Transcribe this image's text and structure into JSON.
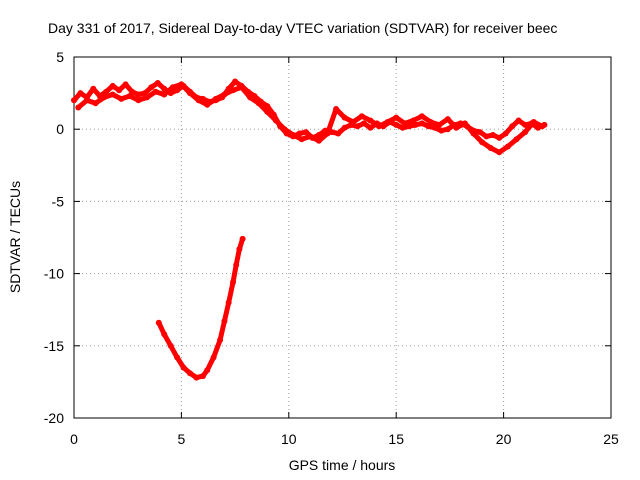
{
  "chart_data": {
    "type": "line",
    "title": "Day 331 of 2017, Sidereal Day-to-day VTEC variation (SDTVAR) for receiver beec",
    "xlabel": "GPS time / hours",
    "ylabel": "SDTVAR / TECUs",
    "xlim": [
      0,
      25
    ],
    "ylim": [
      -20,
      5
    ],
    "xticks": [
      0,
      5,
      10,
      15,
      20,
      25
    ],
    "yticks": [
      5,
      0,
      -5,
      -10,
      -15,
      -20
    ],
    "grid": true,
    "series": [
      {
        "name": "sdtvar-main",
        "color": "#ff0000",
        "x": [
          0.0,
          0.3,
          0.6,
          0.9,
          1.2,
          1.5,
          1.8,
          2.1,
          2.4,
          2.7,
          3.0,
          3.3,
          3.6,
          3.9,
          4.2,
          4.5,
          4.8,
          5.1,
          5.4,
          5.7,
          6.0,
          6.3,
          6.6,
          6.9,
          7.2,
          7.5,
          7.8,
          8.1,
          8.4,
          8.7,
          9.0,
          9.3,
          9.6,
          9.9,
          10.2,
          10.5,
          10.8,
          11.1,
          11.4,
          11.7,
          12.0,
          12.3,
          12.6,
          12.9,
          13.2,
          13.5,
          13.8,
          14.1,
          14.4,
          14.7,
          15.0,
          15.3,
          15.6,
          15.9,
          16.2,
          16.5,
          16.8,
          17.1,
          17.4,
          17.7,
          18.0,
          18.3,
          18.6,
          18.9,
          19.2,
          19.5,
          19.8,
          20.1,
          20.4,
          20.7,
          21.0,
          21.3,
          21.6,
          21.9
        ],
        "y": [
          2.0,
          2.5,
          2.2,
          2.8,
          2.3,
          2.6,
          3.0,
          2.7,
          3.1,
          2.6,
          2.4,
          2.5,
          2.9,
          3.2,
          2.8,
          2.5,
          2.7,
          3.0,
          2.6,
          2.2,
          2.1,
          1.9,
          2.0,
          2.2,
          2.8,
          3.3,
          3.0,
          2.6,
          2.3,
          1.9,
          1.6,
          1.0,
          0.2,
          -0.3,
          -0.5,
          -0.3,
          -0.2,
          -0.6,
          -0.4,
          -0.1,
          -0.2,
          -0.3,
          0.1,
          0.3,
          0.2,
          0.4,
          0.1,
          0.4,
          0.2,
          0.5,
          0.3,
          0.1,
          0.2,
          0.3,
          0.4,
          0.2,
          0.1,
          -0.1,
          0.0,
          0.3,
          0.4,
          0.2,
          -0.1,
          -0.2,
          -0.5,
          -0.4,
          -0.6,
          -0.3,
          0.2,
          0.6,
          0.3,
          0.4,
          0.1,
          0.3
        ]
      },
      {
        "name": "sdtvar-secondary",
        "color": "#ff0000",
        "x": [
          0.2,
          0.6,
          1.0,
          1.4,
          1.8,
          2.2,
          2.6,
          3.0,
          3.4,
          3.8,
          4.2,
          4.6,
          5.0,
          5.4,
          5.8,
          6.2,
          6.6,
          7.0,
          7.4,
          7.8,
          8.2,
          8.6,
          9.0,
          9.4,
          9.8,
          10.2,
          10.6,
          11.0,
          11.4,
          11.8,
          12.2,
          12.6,
          13.0,
          13.4,
          13.8,
          14.2,
          14.6,
          15.0,
          15.4,
          15.8,
          16.2,
          16.6,
          17.0,
          17.4,
          17.8,
          18.2,
          18.6,
          19.0,
          19.4,
          19.8,
          20.2,
          20.6,
          21.0,
          21.4,
          21.8
        ],
        "y": [
          1.5,
          2.0,
          1.8,
          2.2,
          2.4,
          2.1,
          2.3,
          2.0,
          2.2,
          2.6,
          2.4,
          2.9,
          3.1,
          2.5,
          2.0,
          1.7,
          2.1,
          2.4,
          2.7,
          2.9,
          2.2,
          1.8,
          1.2,
          0.6,
          0.0,
          -0.4,
          -0.7,
          -0.5,
          -0.8,
          -0.3,
          1.4,
          0.8,
          0.5,
          0.9,
          0.6,
          0.2,
          0.5,
          0.8,
          0.4,
          0.6,
          0.9,
          0.5,
          0.3,
          0.7,
          0.1,
          0.4,
          -0.3,
          -0.9,
          -1.3,
          -1.6,
          -1.2,
          -0.7,
          -0.2,
          0.5,
          0.2
        ]
      },
      {
        "name": "sdtvar-dip",
        "color": "#ff0000",
        "x": [
          3.95,
          4.2,
          4.5,
          4.8,
          5.1,
          5.4,
          5.7,
          6.0,
          6.2,
          6.5,
          6.8,
          7.0,
          7.2,
          7.4,
          7.55,
          7.7,
          7.85
        ],
        "y": [
          -13.4,
          -14.2,
          -15.0,
          -15.8,
          -16.5,
          -16.9,
          -17.2,
          -17.1,
          -16.7,
          -15.8,
          -14.6,
          -13.3,
          -12.0,
          -10.6,
          -9.4,
          -8.3,
          -7.6
        ]
      }
    ]
  }
}
